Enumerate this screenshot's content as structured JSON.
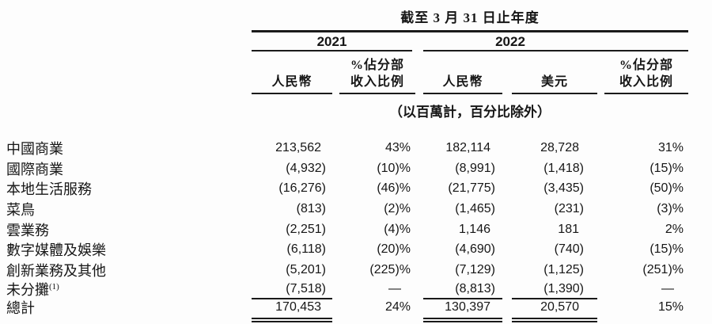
{
  "header": {
    "title": "截至 3 月 31 日止年度",
    "year_2021": "2021",
    "year_2022": "2022",
    "col_rmb": "人民幣",
    "col_usd": "美元",
    "col_pct_line1": "%佔分部",
    "col_pct_line2": "收入比例",
    "unit_note": "（以百萬計，百分比除外）"
  },
  "rows": [
    {
      "label": "中國商業",
      "rmb_2021": "213,562",
      "pct_2021": "43%",
      "rmb_2022": "182,114",
      "usd_2022": "28,728",
      "pct_2022": "31%"
    },
    {
      "label": "國際商業",
      "rmb_2021": "(4,932)",
      "pct_2021": "(10)%",
      "rmb_2022": "(8,991)",
      "usd_2022": "(1,418)",
      "pct_2022": "(15)%"
    },
    {
      "label": "本地生活服務",
      "rmb_2021": "(16,276)",
      "pct_2021": "(46)%",
      "rmb_2022": "(21,775)",
      "usd_2022": "(3,435)",
      "pct_2022": "(50)%"
    },
    {
      "label": "菜鳥",
      "rmb_2021": "(813)",
      "pct_2021": "(2)%",
      "rmb_2022": "(1,465)",
      "usd_2022": "(231)",
      "pct_2022": "(3)%"
    },
    {
      "label": "雲業務",
      "rmb_2021": "(2,251)",
      "pct_2021": "(4)%",
      "rmb_2022": "1,146",
      "usd_2022": "181",
      "pct_2022": "2%"
    },
    {
      "label": "數字媒體及娛樂",
      "rmb_2021": "(6,118)",
      "pct_2021": "(20)%",
      "rmb_2022": "(4,690)",
      "usd_2022": "(740)",
      "pct_2022": "(15)%"
    },
    {
      "label": "創新業務及其他",
      "rmb_2021": "(5,201)",
      "pct_2021": "(225)%",
      "rmb_2022": "(7,129)",
      "usd_2022": "(1,125)",
      "pct_2022": "(251)%"
    },
    {
      "label": "未分攤",
      "label_sup": "(1)",
      "rmb_2021": "(7,518)",
      "pct_2021": "—",
      "rmb_2022": "(8,813)",
      "usd_2022": "(1,390)",
      "pct_2022": "—"
    },
    {
      "label": "總計",
      "rmb_2021": "170,453",
      "pct_2021": "24%",
      "rmb_2022": "130,397",
      "usd_2022": "20,570",
      "pct_2022": "15%"
    }
  ]
}
